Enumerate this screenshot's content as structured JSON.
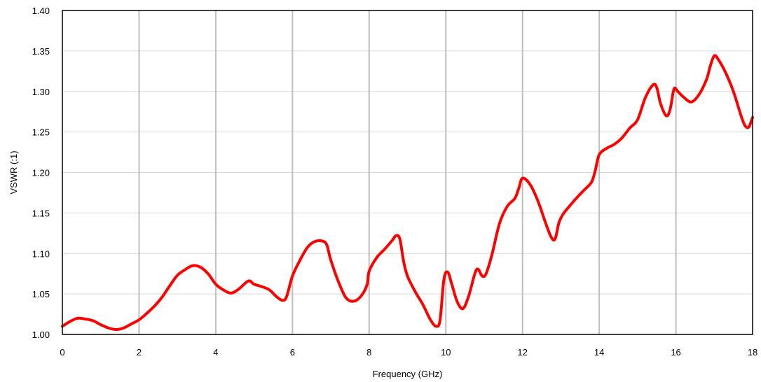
{
  "chart_data": {
    "type": "line",
    "title": "",
    "xlabel": "Frequency (GHz)",
    "ylabel": "VSWR (:1)",
    "xlim": [
      0,
      18
    ],
    "ylim": [
      1.0,
      1.4
    ],
    "x_ticks": [
      "0",
      "2",
      "4",
      "6",
      "8",
      "10",
      "12",
      "14",
      "16",
      "18"
    ],
    "y_ticks": [
      "1.00",
      "1.05",
      "1.10",
      "1.15",
      "1.20",
      "1.25",
      "1.30",
      "1.35",
      "1.40"
    ],
    "grid": {
      "vertical": "major",
      "horizontal": "minor"
    },
    "legend": "none",
    "line_color": "#ff0000",
    "series": [
      {
        "x": [
          0,
          0.2,
          0.4,
          0.6,
          0.8,
          1.0,
          1.2,
          1.4,
          1.6,
          1.8,
          2.0,
          2.2,
          2.4,
          2.6,
          2.8,
          3.0,
          3.2,
          3.4,
          3.6,
          3.8,
          4.0,
          4.2,
          4.4,
          4.6,
          4.85,
          5.0,
          5.2,
          5.4,
          5.6,
          5.75,
          5.85,
          6.0,
          6.2,
          6.4,
          6.6,
          6.8,
          6.9,
          7.0,
          7.2,
          7.4,
          7.6,
          7.8,
          7.95,
          8.0,
          8.2,
          8.4,
          8.6,
          8.7,
          8.8,
          8.9,
          9.0,
          9.2,
          9.4,
          9.6,
          9.75,
          9.85,
          9.95,
          10.05,
          10.15,
          10.3,
          10.45,
          10.6,
          10.8,
          10.95,
          11.05,
          11.2,
          11.4,
          11.6,
          11.8,
          11.9,
          12.0,
          12.2,
          12.4,
          12.6,
          12.75,
          12.85,
          12.95,
          13.05,
          13.2,
          13.4,
          13.6,
          13.8,
          13.9,
          14.0,
          14.2,
          14.4,
          14.6,
          14.8,
          15.0,
          15.2,
          15.4,
          15.5,
          15.6,
          15.75,
          15.85,
          15.95,
          16.05,
          16.2,
          16.4,
          16.6,
          16.8,
          16.9,
          17.0,
          17.1,
          17.3,
          17.5,
          17.7,
          17.8,
          17.9,
          18.0
        ],
        "y": [
          1.01,
          1.016,
          1.02,
          1.019,
          1.017,
          1.012,
          1.008,
          1.006,
          1.008,
          1.013,
          1.018,
          1.026,
          1.035,
          1.046,
          1.06,
          1.073,
          1.08,
          1.085,
          1.083,
          1.075,
          1.062,
          1.055,
          1.051,
          1.056,
          1.066,
          1.062,
          1.059,
          1.055,
          1.046,
          1.042,
          1.047,
          1.072,
          1.092,
          1.108,
          1.115,
          1.115,
          1.11,
          1.092,
          1.065,
          1.045,
          1.041,
          1.048,
          1.062,
          1.078,
          1.095,
          1.105,
          1.116,
          1.122,
          1.118,
          1.09,
          1.072,
          1.053,
          1.037,
          1.018,
          1.01,
          1.018,
          1.068,
          1.077,
          1.063,
          1.04,
          1.032,
          1.048,
          1.08,
          1.072,
          1.075,
          1.098,
          1.137,
          1.158,
          1.168,
          1.18,
          1.193,
          1.185,
          1.165,
          1.138,
          1.12,
          1.118,
          1.138,
          1.148,
          1.157,
          1.168,
          1.178,
          1.188,
          1.203,
          1.222,
          1.23,
          1.235,
          1.243,
          1.255,
          1.265,
          1.292,
          1.308,
          1.305,
          1.285,
          1.27,
          1.278,
          1.303,
          1.3,
          1.293,
          1.287,
          1.296,
          1.315,
          1.332,
          1.344,
          1.34,
          1.323,
          1.3,
          1.27,
          1.258,
          1.256,
          1.268
        ]
      }
    ]
  }
}
